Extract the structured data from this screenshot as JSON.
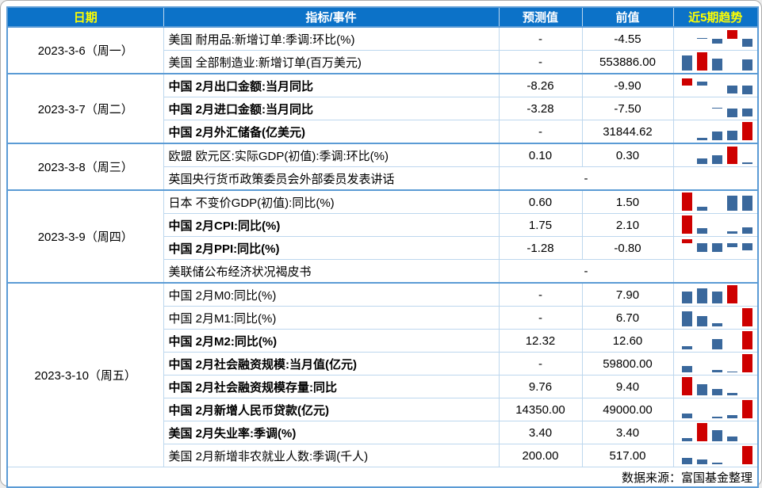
{
  "colors": {
    "header_bg": "#0C72C8",
    "header_text": "#FFFFFF",
    "header_accent": "#FFFF00",
    "grid": "#BDD7EE",
    "grid_strong": "#5B9BD5",
    "bar_blue": "#3A689C",
    "bar_red": "#CE0000"
  },
  "columns": [
    {
      "key": "date",
      "label": "日期",
      "accent": true
    },
    {
      "key": "indicator",
      "label": "指标/事件",
      "accent": false
    },
    {
      "key": "forecast",
      "label": "预测值",
      "accent": false
    },
    {
      "key": "previous",
      "label": "前值",
      "accent": false
    },
    {
      "key": "trend",
      "label": "近5期趋势",
      "accent": true
    }
  ],
  "groups": [
    {
      "date": "2023-3-6（周一）",
      "rows": [
        {
          "indicator": "美国 耐用品:新增订单:季调:环比(%)",
          "bold": false,
          "forecast": "-",
          "previous": "-4.55",
          "trend": {
            "base": 0.5,
            "bars": [
              null,
              {
                "h": 0.04,
                "c": "blue"
              },
              {
                "h": -0.24,
                "c": "blue"
              },
              {
                "h": 0.42,
                "c": "red"
              },
              {
                "h": -0.38,
                "c": "blue"
              }
            ]
          }
        },
        {
          "indicator": "美国 全部制造业:新增订单(百万美元)",
          "bold": false,
          "forecast": "-",
          "previous": "553886.00",
          "trend": {
            "base": 0.07,
            "bars": [
              {
                "h": 0.72,
                "c": "blue"
              },
              {
                "h": 0.9,
                "c": "red"
              },
              {
                "h": 0.58,
                "c": "blue"
              },
              null,
              {
                "h": 0.55,
                "c": "blue"
              }
            ]
          }
        }
      ]
    },
    {
      "date": "2023-3-7（周二）",
      "rows": [
        {
          "indicator": "中国 2月出口金额:当月同比",
          "bold": true,
          "forecast": "-8.26",
          "previous": "-9.90",
          "trend": {
            "base": 0.5,
            "bars": [
              {
                "h": 0.36,
                "c": "red"
              },
              {
                "h": 0.18,
                "c": "blue"
              },
              null,
              {
                "h": -0.38,
                "c": "blue"
              },
              {
                "h": -0.42,
                "c": "blue"
              }
            ]
          }
        },
        {
          "indicator": "中国 2月进口金额:当月同比",
          "bold": true,
          "forecast": "-3.28",
          "previous": "-7.50",
          "trend": {
            "base": 0.5,
            "bars": [
              null,
              null,
              {
                "h": 0.05,
                "c": "blue"
              },
              {
                "h": -0.42,
                "c": "blue"
              },
              {
                "h": -0.4,
                "c": "blue"
              }
            ]
          }
        },
        {
          "indicator": "中国 2月外汇储备(亿美元)",
          "bold": true,
          "forecast": "-",
          "previous": "31844.62",
          "trend": {
            "base": 0.07,
            "bars": [
              null,
              {
                "h": 0.12,
                "c": "blue"
              },
              {
                "h": 0.42,
                "c": "blue"
              },
              {
                "h": 0.46,
                "c": "blue"
              },
              {
                "h": 0.9,
                "c": "red"
              }
            ]
          }
        }
      ]
    },
    {
      "date": "2023-3-8（周三）",
      "rows": [
        {
          "indicator": "欧盟 欧元区:实际GDP(初值):季调:环比(%)",
          "bold": false,
          "forecast": "0.10",
          "previous": "0.30",
          "trend": {
            "base": 0.07,
            "bars": [
              null,
              {
                "h": 0.28,
                "c": "blue"
              },
              {
                "h": 0.42,
                "c": "blue"
              },
              {
                "h": 0.85,
                "c": "red"
              },
              {
                "h": 0.1,
                "c": "blue"
              }
            ]
          }
        },
        {
          "indicator": "英国央行货币政策委员会外部委员发表讲话",
          "bold": false,
          "merged": "-",
          "trend": null
        }
      ]
    },
    {
      "date": "2023-3-9（周四）",
      "rows": [
        {
          "indicator": "日本 不变价GDP(初值):同比(%)",
          "bold": false,
          "forecast": "0.60",
          "previous": "1.50",
          "trend": {
            "base": 0.07,
            "bars": [
              {
                "h": 0.9,
                "c": "red"
              },
              {
                "h": 0.2,
                "c": "blue"
              },
              null,
              {
                "h": 0.75,
                "c": "blue"
              },
              {
                "h": 0.72,
                "c": "blue"
              }
            ]
          }
        },
        {
          "indicator": "中国 2月CPI:同比(%)",
          "bold": true,
          "forecast": "1.75",
          "previous": "2.10",
          "trend": {
            "base": 0.07,
            "bars": [
              {
                "h": 0.9,
                "c": "red"
              },
              {
                "h": 0.28,
                "c": "blue"
              },
              null,
              {
                "h": 0.12,
                "c": "blue"
              },
              {
                "h": 0.3,
                "c": "blue"
              }
            ]
          }
        },
        {
          "indicator": "中国 2月PPI:同比(%)",
          "bold": true,
          "forecast": "-1.28",
          "previous": "-0.80",
          "trend": {
            "base": 0.72,
            "bars": [
              {
                "h": 0.22,
                "c": "red"
              },
              {
                "h": -0.42,
                "c": "blue"
              },
              {
                "h": -0.42,
                "c": "blue"
              },
              {
                "h": -0.18,
                "c": "blue"
              },
              {
                "h": -0.32,
                "c": "blue"
              }
            ]
          }
        },
        {
          "indicator": "美联储公布经济状况褐皮书",
          "bold": false,
          "merged": "-",
          "trend": null
        }
      ]
    },
    {
      "date": "2023-3-10（周五）",
      "rows": [
        {
          "indicator": "中国 2月M0:同比(%)",
          "bold": false,
          "forecast": "-",
          "previous": "7.90",
          "trend": {
            "base": 0.07,
            "bars": [
              {
                "h": 0.6,
                "c": "blue"
              },
              {
                "h": 0.72,
                "c": "blue"
              },
              {
                "h": 0.6,
                "c": "blue"
              },
              {
                "h": 0.9,
                "c": "red"
              },
              null
            ]
          }
        },
        {
          "indicator": "中国 2月M1:同比(%)",
          "bold": false,
          "forecast": "-",
          "previous": "6.70",
          "trend": {
            "base": 0.07,
            "bars": [
              {
                "h": 0.72,
                "c": "blue"
              },
              {
                "h": 0.5,
                "c": "blue"
              },
              {
                "h": 0.16,
                "c": "blue"
              },
              null,
              {
                "h": 0.9,
                "c": "red"
              }
            ]
          }
        },
        {
          "indicator": "中国 2月M2:同比(%)",
          "bold": true,
          "forecast": "12.32",
          "previous": "12.60",
          "trend": {
            "base": 0.07,
            "bars": [
              {
                "h": 0.18,
                "c": "blue"
              },
              null,
              {
                "h": 0.5,
                "c": "blue"
              },
              null,
              {
                "h": 0.9,
                "c": "red"
              }
            ]
          }
        },
        {
          "indicator": "中国 2月社会融资规模:当月值(亿元)",
          "bold": true,
          "forecast": "-",
          "previous": "59800.00",
          "trend": {
            "base": 0.07,
            "bars": [
              {
                "h": 0.3,
                "c": "blue"
              },
              null,
              {
                "h": 0.12,
                "c": "blue"
              },
              {
                "h": 0.05,
                "c": "blue"
              },
              {
                "h": 0.9,
                "c": "red"
              }
            ]
          }
        },
        {
          "indicator": "中国 2月社会融资规模存量:同比",
          "bold": true,
          "forecast": "9.76",
          "previous": "9.40",
          "trend": {
            "base": 0.07,
            "bars": [
              {
                "h": 0.9,
                "c": "red"
              },
              {
                "h": 0.55,
                "c": "blue"
              },
              {
                "h": 0.3,
                "c": "blue"
              },
              {
                "h": 0.12,
                "c": "blue"
              },
              null
            ]
          }
        },
        {
          "indicator": "中国 2月新增人民币贷款(亿元)",
          "bold": true,
          "forecast": "14350.00",
          "previous": "49000.00",
          "trend": {
            "base": 0.07,
            "bars": [
              {
                "h": 0.25,
                "c": "blue"
              },
              null,
              {
                "h": 0.08,
                "c": "blue"
              },
              {
                "h": 0.18,
                "c": "blue"
              },
              {
                "h": 0.9,
                "c": "red"
              }
            ]
          }
        },
        {
          "indicator": "美国 2月失业率:季调(%)",
          "bold": true,
          "forecast": "3.40",
          "previous": "3.40",
          "trend": {
            "base": 0.07,
            "bars": [
              {
                "h": 0.15,
                "c": "blue"
              },
              {
                "h": 0.9,
                "c": "red"
              },
              {
                "h": 0.55,
                "c": "blue"
              },
              {
                "h": 0.25,
                "c": "blue"
              },
              null
            ]
          }
        },
        {
          "indicator": "美国 2月新增非农就业人数:季调(千人)",
          "bold": false,
          "forecast": "200.00",
          "previous": "517.00",
          "trend": {
            "base": 0.07,
            "bars": [
              {
                "h": 0.3,
                "c": "blue"
              },
              {
                "h": 0.22,
                "c": "blue"
              },
              {
                "h": 0.08,
                "c": "blue"
              },
              null,
              {
                "h": 0.9,
                "c": "red"
              }
            ]
          }
        }
      ]
    }
  ],
  "footer": {
    "source": "数据来源：富国基金整理"
  }
}
